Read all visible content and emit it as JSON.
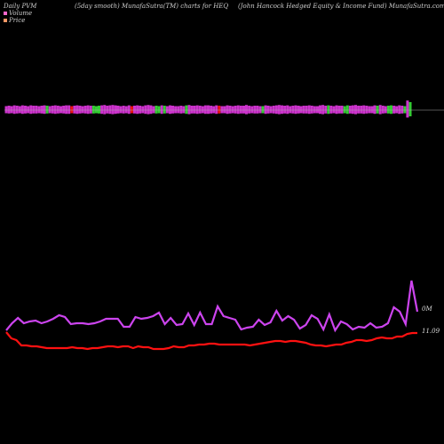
{
  "header": {
    "left": "Daily PVM",
    "middle": "(5day smooth) MunafaSutra(TM) charts for HEQ",
    "right": "(John Hancock Hedged Equity & Income Fund) MunafaSutra.com"
  },
  "legend": {
    "volume_label": "Volume",
    "price_label": "Price",
    "volume_color": "#ff66cc",
    "price_color": "#ff9966"
  },
  "colors": {
    "bar_magenta": "#cc33cc",
    "bar_green": "#33cc33",
    "bar_red": "#ee1111",
    "volume_line": "#cc44ee",
    "price_line": "#ff1111",
    "baseline": "#aaaaaa"
  },
  "chart_data": {
    "type": "line",
    "bars": {
      "values": [
        1.0,
        1.1,
        1.0,
        1.2,
        1.1,
        1.0,
        1.2,
        1.1,
        1.0,
        1.2,
        1.1,
        1.1,
        1.0,
        1.1,
        1.2,
        1.1,
        1.0,
        1.1,
        1.2,
        1.1,
        1.0,
        1.1,
        1.2,
        1.2,
        1.0,
        1.1,
        1.2,
        1.1,
        1.0,
        1.1,
        1.2,
        1.1,
        1.1,
        1.0,
        1.1,
        1.2,
        1.3,
        1.1,
        1.2,
        1.3,
        1.2,
        1.1,
        1.0,
        1.1,
        1.0,
        1.2,
        1.0,
        1.1,
        1.2,
        1.1,
        1.0,
        1.2,
        1.3,
        1.2,
        1.0,
        1.1,
        1.0,
        1.2,
        1.1,
        1.0,
        1.2,
        1.1,
        1.0,
        1.0,
        1.1,
        1.0,
        1.2,
        1.3,
        1.1,
        1.1,
        1.2,
        1.1,
        1.0,
        1.2,
        1.2,
        1.1,
        1.0,
        1.2,
        1.1,
        1.0,
        1.0,
        1.2,
        1.1,
        1.0,
        1.1,
        1.2,
        1.1,
        1.1,
        1.3,
        1.1,
        1.0,
        1.1,
        1.1,
        1.0,
        1.0,
        1.2,
        1.1,
        1.0,
        1.1,
        1.2,
        1.3,
        1.2,
        1.1,
        1.2,
        1.0,
        1.1,
        1.2,
        1.1,
        1.0,
        1.1,
        1.1,
        1.2,
        1.1,
        1.0,
        1.0,
        1.2,
        1.3,
        1.1,
        1.2,
        1.1,
        1.0,
        1.2,
        1.1,
        1.1,
        1.0,
        1.2,
        1.1,
        1.2,
        1.3,
        1.1,
        1.1,
        1.2,
        1.1,
        1.0,
        1.0,
        1.2,
        1.1,
        1.3,
        1.1,
        1.0,
        1.1,
        1.2,
        1.1,
        1.0,
        1.2,
        1.1,
        1.0,
        2.4,
        2.0
      ],
      "colors": [
        "m",
        "m",
        "m",
        "m",
        "m",
        "m",
        "m",
        "m",
        "m",
        "m",
        "m",
        "m",
        "m",
        "m",
        "m",
        "g",
        "m",
        "m",
        "m",
        "m",
        "m",
        "m",
        "m",
        "m",
        "r",
        "m",
        "m",
        "m",
        "m",
        "m",
        "m",
        "m",
        "g",
        "g",
        "g",
        "m",
        "m",
        "m",
        "m",
        "m",
        "m",
        "m",
        "m",
        "m",
        "m",
        "m",
        "r",
        "m",
        "m",
        "m",
        "m",
        "m",
        "m",
        "m",
        "m",
        "g",
        "g",
        "m",
        "g",
        "m",
        "m",
        "m",
        "m",
        "m",
        "m",
        "m",
        "g",
        "m",
        "m",
        "m",
        "m",
        "m",
        "m",
        "m",
        "m",
        "m",
        "m",
        "m",
        "r",
        "m",
        "m",
        "m",
        "m",
        "m",
        "m",
        "m",
        "m",
        "m",
        "m",
        "m",
        "m",
        "m",
        "m",
        "m",
        "g",
        "m",
        "m",
        "m",
        "m",
        "m",
        "m",
        "m",
        "m",
        "m",
        "m",
        "m",
        "m",
        "m",
        "m",
        "m",
        "m",
        "m",
        "m",
        "m",
        "m",
        "m",
        "m",
        "m",
        "g",
        "m",
        "m",
        "m",
        "m",
        "m",
        "g",
        "g",
        "m",
        "m",
        "m",
        "m",
        "m",
        "m",
        "m",
        "m",
        "m",
        "m",
        "g",
        "m",
        "m",
        "m",
        "g",
        "g",
        "m",
        "m",
        "m",
        "m",
        "g",
        "m",
        "g"
      ]
    },
    "volume_line": [
      372,
      364,
      358,
      364,
      362,
      361,
      364,
      362,
      359,
      355,
      357,
      365,
      364,
      364,
      365,
      364,
      362,
      359,
      359,
      359,
      368,
      368,
      357,
      359,
      358,
      356,
      352,
      365,
      358,
      366,
      365,
      353,
      366,
      352,
      365,
      365,
      345,
      356,
      358,
      360,
      371,
      369,
      368,
      360,
      366,
      363,
      350,
      361,
      356,
      360,
      370,
      366,
      355,
      359,
      371,
      354,
      372,
      362,
      365,
      371,
      368,
      369,
      364,
      369,
      368,
      364,
      346,
      351,
      365,
      316,
      351
    ],
    "price_line": [
      374,
      381,
      383,
      389,
      389,
      390,
      390,
      391,
      392,
      392,
      392,
      392,
      392,
      391,
      392,
      392,
      393,
      392,
      392,
      391,
      390,
      390,
      391,
      390,
      390,
      392,
      390,
      391,
      391,
      393,
      393,
      393,
      392,
      390,
      391,
      391,
      389,
      389,
      388,
      388,
      387,
      387,
      388,
      388,
      388,
      388,
      388,
      388,
      389,
      388,
      387,
      386,
      385,
      384,
      384,
      385,
      384,
      384,
      385,
      386,
      388,
      389,
      389,
      390,
      389,
      388,
      388,
      386,
      385,
      383,
      383,
      384,
      383,
      381,
      380,
      381,
      381,
      379,
      379,
      376,
      375,
      375
    ],
    "labels": {
      "volume_last": "0M",
      "price_last": "11.09"
    }
  }
}
